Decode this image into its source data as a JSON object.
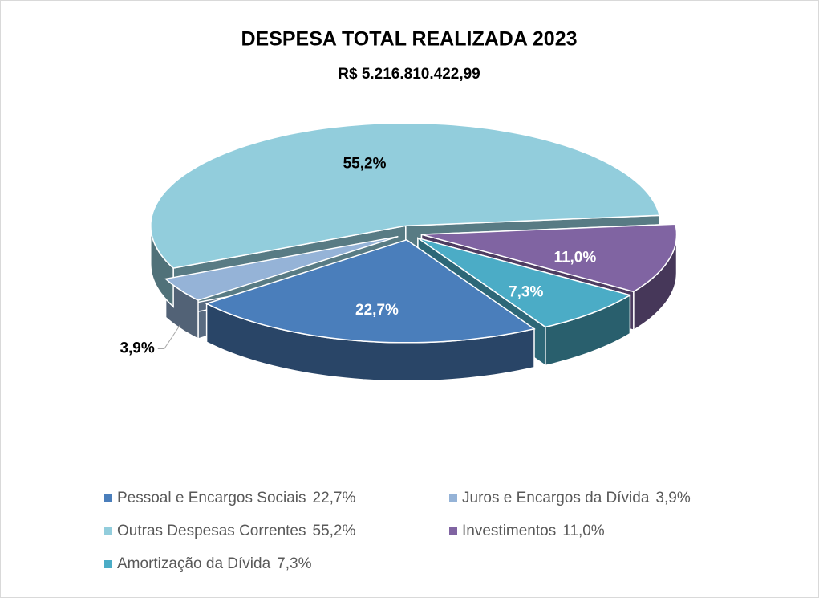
{
  "chart_data": {
    "type": "pie3d",
    "title": "DESPESA TOTAL REALIZADA 2023",
    "subtitle": "R$ 5.216.810.422,99",
    "categories": [
      "Pessoal e Encargos Sociais",
      "Juros e Encargos da Dívida",
      "Outras Despesas Correntes",
      "Investimentos",
      "Amortização da Dívida"
    ],
    "values": [
      22.7,
      3.9,
      55.2,
      11.0,
      7.3
    ],
    "value_labels": [
      "22,7%",
      "3,9%",
      "55,2%",
      "11,0%",
      "7,3%"
    ],
    "colors": [
      "#4a7ebb",
      "#95b3d7",
      "#92cddc",
      "#8064a2",
      "#4bacc6"
    ],
    "legend": "bottom"
  }
}
